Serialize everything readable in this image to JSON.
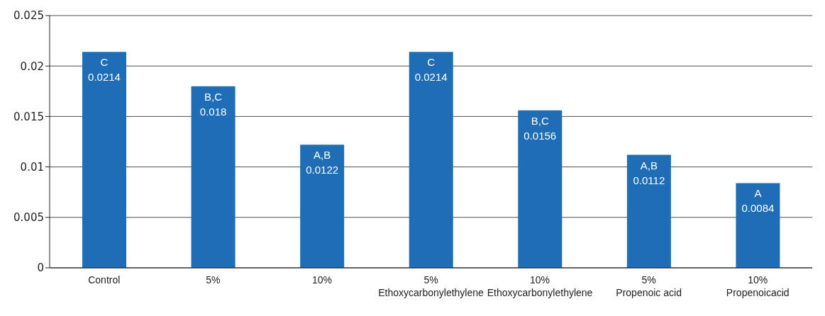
{
  "chart_data": {
    "type": "bar",
    "categories": [
      "Control",
      "5%",
      "10%",
      "5%\nEthoxycarbonylethylene",
      "10%\nEthoxycarbonylethylene",
      "5%\nPropenoic acid",
      "10%\nPropenoicacid"
    ],
    "values": [
      0.0214,
      0.018,
      0.0122,
      0.0214,
      0.0156,
      0.0112,
      0.0084
    ],
    "value_labels": [
      "C\n0.0214",
      "B,C\n0.018",
      "A,B\n0.0122",
      "C\n0.0214",
      "B,C\n0.0156",
      "A,B\n0.0112",
      "A\n0.0084"
    ],
    "color": "#1f6db4",
    "ylim": [
      0,
      0.025
    ],
    "yticks": [
      0,
      0.005,
      0.01,
      0.015,
      0.02,
      0.025
    ],
    "grid": "y",
    "legend": false
  }
}
